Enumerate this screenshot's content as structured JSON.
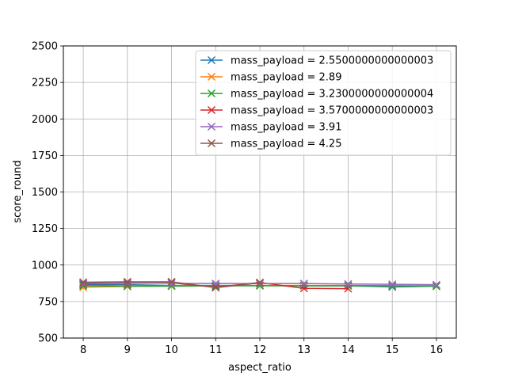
{
  "chart_data": {
    "type": "line",
    "xlabel": "aspect_ratio",
    "ylabel": "score_round",
    "xlim": [
      7.55,
      16.45
    ],
    "ylim": [
      500,
      2500
    ],
    "xticks": [
      8,
      9,
      10,
      11,
      12,
      13,
      14,
      15,
      16
    ],
    "yticks": [
      500,
      750,
      1000,
      1250,
      1500,
      1750,
      2000,
      2250,
      2500
    ],
    "grid": true,
    "legend_position": "top-right",
    "marker": "x",
    "series": [
      {
        "name": "mass_payload = 2.5500000000000003",
        "color": "#1f77b4",
        "x": [
          8,
          9,
          10,
          11,
          12,
          13,
          14,
          15,
          16
        ],
        "y": [
          865,
          865,
          860,
          860,
          860,
          858,
          858,
          850,
          855
        ]
      },
      {
        "name": "mass_payload = 2.89",
        "color": "#ff7f0e",
        "x": [
          8,
          9,
          10,
          11,
          12,
          13,
          14,
          15,
          16
        ],
        "y": [
          848,
          853,
          858,
          858,
          860,
          860,
          860,
          858,
          858
        ]
      },
      {
        "name": "mass_payload = 3.2300000000000004",
        "color": "#2ca02c",
        "x": [
          8,
          9,
          10,
          11,
          12,
          13,
          14,
          15,
          16
        ],
        "y": [
          858,
          855,
          855,
          858,
          858,
          858,
          858,
          858,
          855
        ]
      },
      {
        "name": "mass_payload = 3.5700000000000003",
        "color": "#d62728",
        "x": [
          8,
          9,
          10,
          11,
          12,
          13,
          14
        ],
        "y": [
          872,
          875,
          878,
          848,
          880,
          840,
          838
        ]
      },
      {
        "name": "mass_payload = 3.91",
        "color": "#9467bd",
        "x": [
          8,
          9,
          10,
          11,
          12,
          13,
          14,
          15,
          16
        ],
        "y": [
          875,
          878,
          875,
          873,
          873,
          873,
          870,
          868,
          865
        ]
      },
      {
        "name": "mass_payload = 4.25",
        "color": "#8c564b",
        "x": [
          8,
          9,
          10,
          11,
          12
        ],
        "y": [
          882,
          885,
          885,
          845,
          878
        ]
      }
    ]
  }
}
